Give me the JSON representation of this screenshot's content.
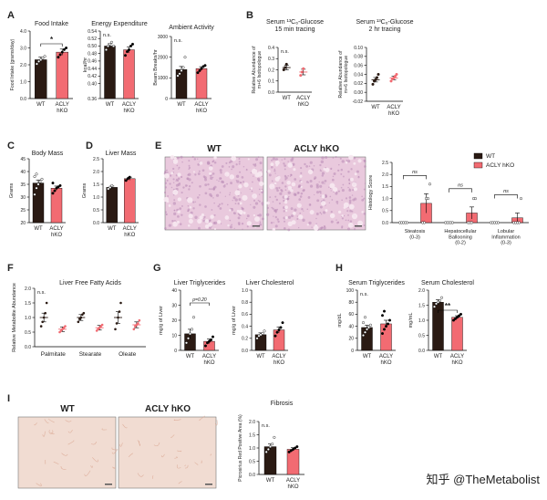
{
  "colors": {
    "wt": "#2a1a13",
    "ko": "#f26b72",
    "he_base": "#e9c9dd",
    "he_dark": "#b889b4",
    "he_light": "#f7e9f1",
    "sirius_base": "#f1dcd2",
    "sirius_fiber": "#d9a590",
    "ink": "#222222"
  },
  "watermark": "知乎 @TheMetabolist",
  "panel_E": {
    "image_labels": [
      "WT",
      "ACLY hKO"
    ]
  },
  "panel_I": {
    "image_labels": [
      "WT",
      "ACLY hKO"
    ]
  },
  "chart_data": [
    {
      "id": "A1",
      "type": "bar",
      "panel": "A",
      "title": "Food Intake",
      "ylabel": "Food Intake (grams/day)",
      "categories": [
        "WT",
        "ACLY\nhKO"
      ],
      "ylim": [
        0,
        4
      ],
      "yticks": [
        0,
        1,
        2,
        3,
        4
      ],
      "ytick_labels": [
        "0.0",
        "1.0",
        "2.0",
        "3.0",
        "4.0"
      ],
      "values": [
        2.3,
        2.75
      ],
      "errors": [
        0.15,
        0.18
      ],
      "points": [
        [
          2.05,
          2.2,
          2.3,
          2.4,
          2.5
        ],
        [
          2.45,
          2.6,
          2.75,
          2.9,
          3.0
        ]
      ],
      "significance": "*"
    },
    {
      "id": "A2",
      "type": "bar",
      "panel": "A",
      "title": "Energy Expenditure",
      "ylabel": "kcal/hr",
      "categories": [
        "WT",
        "ACLY\nhKO"
      ],
      "ylim": [
        0.36,
        0.54
      ],
      "yticks": [
        0.36,
        0.4,
        0.42,
        0.44,
        0.46,
        0.48,
        0.5,
        0.52,
        0.54
      ],
      "ytick_labels": [
        "0.36",
        "0.40",
        "0.42",
        "0.44",
        "0.46",
        "0.48",
        "0.50",
        "0.52",
        "0.54"
      ],
      "values": [
        0.5,
        0.49
      ],
      "errors": [
        0.006,
        0.008
      ],
      "points": [
        [
          0.49,
          0.5,
          0.505,
          0.51,
          0.5
        ],
        [
          0.475,
          0.485,
          0.49,
          0.5,
          0.505
        ]
      ],
      "significance": "n.s."
    },
    {
      "id": "A3",
      "type": "bar",
      "panel": "A",
      "title": "Ambient Activity",
      "ylabel": "Beam Breaks/hr",
      "categories": [
        "WT",
        "ACLY\nhKO"
      ],
      "ylim": [
        0,
        3000
      ],
      "yticks": [
        0,
        1000,
        2000,
        3000
      ],
      "ytick_labels": [
        "0",
        "1000",
        "2000",
        "3000"
      ],
      "values": [
        1400,
        1450
      ],
      "errors": [
        150,
        90
      ],
      "points": [
        [
          1100,
          1200,
          1350,
          1500,
          2000
        ],
        [
          1250,
          1350,
          1450,
          1550,
          1600
        ]
      ],
      "significance": "n.s."
    },
    {
      "id": "B1",
      "type": "scatter",
      "panel": "B",
      "title": "Serum ¹³C₆-Glucose\n15 min tracing",
      "ylabel": "Relative Abundance of\nm+6 Isotopologue",
      "categories": [
        "WT",
        "ACLY\nhKO"
      ],
      "ylim": [
        0,
        0.4
      ],
      "yticks": [
        0,
        0.1,
        0.2,
        0.3,
        0.4
      ],
      "ytick_labels": [
        "0.0",
        "0.1",
        "0.2",
        "0.3",
        "0.4"
      ],
      "values": [
        0.22,
        0.18
      ],
      "errors": [
        0.02,
        0.025
      ],
      "points": [
        [
          0.2,
          0.22,
          0.25
        ],
        [
          0.15,
          0.18,
          0.21
        ]
      ],
      "significance": "n.s."
    },
    {
      "id": "B2",
      "type": "scatter",
      "panel": "B",
      "title": "Serum ¹³C₆-Glucose\n2 hr tracing",
      "ylabel": "Relative Abundance of\nm+6 Isotopologue",
      "categories": [
        "WT",
        "ACLY\nhKO"
      ],
      "ylim": [
        -0.02,
        0.1
      ],
      "yticks": [
        -0.02,
        0,
        0.02,
        0.04,
        0.06,
        0.08,
        0.1
      ],
      "ytick_labels": [
        "-0.02",
        "0.00",
        "0.02",
        "0.04",
        "0.06",
        "0.08",
        "0.10"
      ],
      "values": [
        0.028,
        0.032
      ],
      "errors": [
        0.005,
        0.004
      ],
      "points": [
        [
          0.018,
          0.025,
          0.028,
          0.033,
          0.04
        ],
        [
          0.025,
          0.03,
          0.032,
          0.036,
          0.04
        ]
      ],
      "significance": ""
    },
    {
      "id": "C",
      "type": "bar",
      "panel": "C",
      "title": "Body Mass",
      "ylabel": "Grams",
      "categories": [
        "WT",
        "ACLY\nhKO"
      ],
      "ylim": [
        20,
        45
      ],
      "yticks": [
        20,
        25,
        30,
        35,
        40,
        45
      ],
      "ytick_labels": [
        "20",
        "25",
        "30",
        "35",
        "40",
        "45"
      ],
      "values": [
        35.5,
        33.5
      ],
      "errors": [
        1.2,
        0.8
      ],
      "points": [
        [
          31,
          33.5,
          35,
          36,
          37,
          38,
          39
        ],
        [
          31.5,
          32.5,
          33.5,
          34,
          34.5,
          35.5
        ]
      ],
      "significance": ""
    },
    {
      "id": "D",
      "type": "bar",
      "panel": "D",
      "title": "Liver Mass",
      "ylabel": "Grams",
      "categories": [
        "WT",
        "ACLY\nhKO"
      ],
      "ylim": [
        0,
        2.5
      ],
      "yticks": [
        0,
        0.5,
        1.0,
        1.5,
        2.0,
        2.5
      ],
      "ytick_labels": [
        "0.0",
        "0.5",
        "1.0",
        "1.5",
        "2.0",
        "2.5"
      ],
      "values": [
        1.38,
        1.72
      ],
      "errors": [
        0.05,
        0.06
      ],
      "points": [
        [
          1.32,
          1.38,
          1.45
        ],
        [
          1.65,
          1.72,
          1.78
        ]
      ],
      "significance": ""
    },
    {
      "id": "E",
      "type": "bar",
      "panel": "E",
      "title": "",
      "ylabel": "Histology Score",
      "categories": [
        "Steatosis\n(0-3)",
        "Hepatocellular\nBallooning\n(0-2)",
        "Lobular\nInflammation\n(0-3)"
      ],
      "ylim": [
        0,
        2.5
      ],
      "yticks": [
        0,
        0.5,
        1.0,
        1.5,
        2.0,
        2.5
      ],
      "ytick_labels": [
        "0.0",
        "0.5",
        "1.0",
        "1.5",
        "2.0",
        "2.5"
      ],
      "legend": [
        "WT",
        "ACLY hKO"
      ],
      "legend_position": "top-right",
      "series": [
        {
          "name": "WT",
          "values": [
            0,
            0,
            0
          ],
          "errors": [
            0,
            0,
            0
          ]
        },
        {
          "name": "ACLY hKO",
          "values": [
            0.8,
            0.4,
            0.2
          ],
          "errors": [
            0.4,
            0.25,
            0.2
          ]
        }
      ],
      "points": [
        [
          [
            0,
            0,
            0,
            0,
            0
          ],
          [
            0,
            0,
            1,
            1,
            1.6
          ]
        ],
        [
          [
            0,
            0,
            0,
            0,
            0
          ],
          [
            0,
            0,
            0,
            1,
            1
          ]
        ],
        [
          [
            0,
            0,
            0,
            0,
            0
          ],
          [
            0,
            0,
            0,
            0,
            1
          ]
        ]
      ],
      "significance": [
        "ns",
        "ns",
        "ns"
      ]
    },
    {
      "id": "F",
      "type": "scatter",
      "panel": "F",
      "title": "Liver Free Fatty Acids",
      "ylabel": "Relative Metabolite Abundance",
      "categories": [
        "Palmitate",
        "Stearate",
        "Oleate"
      ],
      "ylim": [
        0,
        2
      ],
      "yticks": [
        0,
        0.5,
        1.0,
        1.5,
        2.0
      ],
      "ytick_labels": [
        "0.0",
        "0.5",
        "1.0",
        "1.5",
        "2.0"
      ],
      "series": [
        {
          "name": "WT",
          "values": [
            1.0,
            1.0,
            1.0
          ],
          "errors": [
            0.15,
            0.1,
            0.2
          ]
        },
        {
          "name": "ACLY hKO",
          "values": [
            0.6,
            0.65,
            0.75
          ],
          "errors": [
            0.08,
            0.08,
            0.1
          ]
        }
      ],
      "points": [
        [
          [
            0.7,
            0.85,
            1.0,
            1.15,
            1.5
          ],
          [
            0.5,
            0.55,
            0.6,
            0.65,
            0.7
          ]
        ],
        [
          [
            0.85,
            0.95,
            1.0,
            1.1,
            1.15
          ],
          [
            0.55,
            0.6,
            0.65,
            0.7,
            0.75
          ]
        ],
        [
          [
            0.6,
            0.8,
            1.0,
            1.2,
            1.5
          ],
          [
            0.6,
            0.7,
            0.75,
            0.8,
            0.9
          ]
        ]
      ],
      "significance": "n.s."
    },
    {
      "id": "G1",
      "type": "bar",
      "panel": "G",
      "title": "Liver Triglycerides",
      "ylabel": "mg/g of Liver",
      "categories": [
        "WT",
        "ACLY\nhKO"
      ],
      "ylim": [
        0,
        40
      ],
      "yticks": [
        0,
        10,
        20,
        30,
        40
      ],
      "ytick_labels": [
        "0",
        "10",
        "20",
        "30",
        "40"
      ],
      "values": [
        11,
        6
      ],
      "errors": [
        3,
        1.5
      ],
      "points": [
        [
          5,
          8,
          11,
          14,
          22
        ],
        [
          3,
          5,
          6,
          7,
          9
        ]
      ],
      "significance": "p=0.20"
    },
    {
      "id": "G2",
      "type": "bar",
      "panel": "G",
      "title": "Liver Cholesterol",
      "ylabel": "mg/g of Liver",
      "categories": [
        "WT",
        "ACLY\nhKO"
      ],
      "ylim": [
        0,
        1.0
      ],
      "yticks": [
        0,
        0.2,
        0.4,
        0.6,
        0.8,
        1.0
      ],
      "ytick_labels": [
        "0.0",
        "0.2",
        "0.4",
        "0.6",
        "0.8",
        "1.0"
      ],
      "values": [
        0.26,
        0.34
      ],
      "errors": [
        0.03,
        0.05
      ],
      "points": [
        [
          0.2,
          0.24,
          0.26,
          0.28,
          0.32
        ],
        [
          0.24,
          0.3,
          0.34,
          0.38,
          0.46
        ]
      ],
      "significance": ""
    },
    {
      "id": "H1",
      "type": "bar",
      "panel": "H",
      "title": "Serum Triglycerides",
      "ylabel": "mg/dL",
      "categories": [
        "WT",
        "ACLY\nhKO"
      ],
      "ylim": [
        0,
        100
      ],
      "yticks": [
        0,
        20,
        40,
        60,
        80,
        100
      ],
      "ytick_labels": [
        "0",
        "20",
        "40",
        "60",
        "80",
        "100"
      ],
      "values": [
        38,
        44
      ],
      "errors": [
        4,
        6
      ],
      "points": [
        [
          25,
          30,
          35,
          38,
          42,
          46,
          55
        ],
        [
          28,
          35,
          40,
          44,
          50,
          58,
          65
        ]
      ],
      "significance": "n.s."
    },
    {
      "id": "H2",
      "type": "bar",
      "panel": "H",
      "title": "Serum Cholesterol",
      "ylabel": "mg/mL",
      "categories": [
        "WT",
        "ACLY\nhKO"
      ],
      "ylim": [
        0,
        2.0
      ],
      "yticks": [
        0,
        0.5,
        1.0,
        1.5,
        2.0
      ],
      "ytick_labels": [
        "0.0",
        "0.5",
        "1.0",
        "1.5",
        "2.0"
      ],
      "values": [
        1.6,
        1.1
      ],
      "errors": [
        0.08,
        0.05
      ],
      "points": [
        [
          1.45,
          1.55,
          1.6,
          1.65,
          1.75
        ],
        [
          1.0,
          1.05,
          1.1,
          1.15,
          1.2
        ]
      ],
      "significance": "**"
    },
    {
      "id": "I",
      "type": "bar",
      "panel": "I",
      "title": "Fibrosis",
      "ylabel": "Picrosirius Red Positive Area (%)",
      "categories": [
        "WT",
        "ACLY\nhKO"
      ],
      "ylim": [
        0,
        2.0
      ],
      "yticks": [
        0,
        0.5,
        1.0,
        1.5,
        2.0
      ],
      "ytick_labels": [
        "0.0",
        "0.5",
        "1.0",
        "1.5",
        "2.0"
      ],
      "values": [
        1.05,
        0.95
      ],
      "errors": [
        0.1,
        0.06
      ],
      "points": [
        [
          0.85,
          0.95,
          1.05,
          1.15,
          1.4
        ],
        [
          0.85,
          0.9,
          0.95,
          1.0,
          1.05
        ]
      ],
      "significance": "n.s."
    }
  ]
}
